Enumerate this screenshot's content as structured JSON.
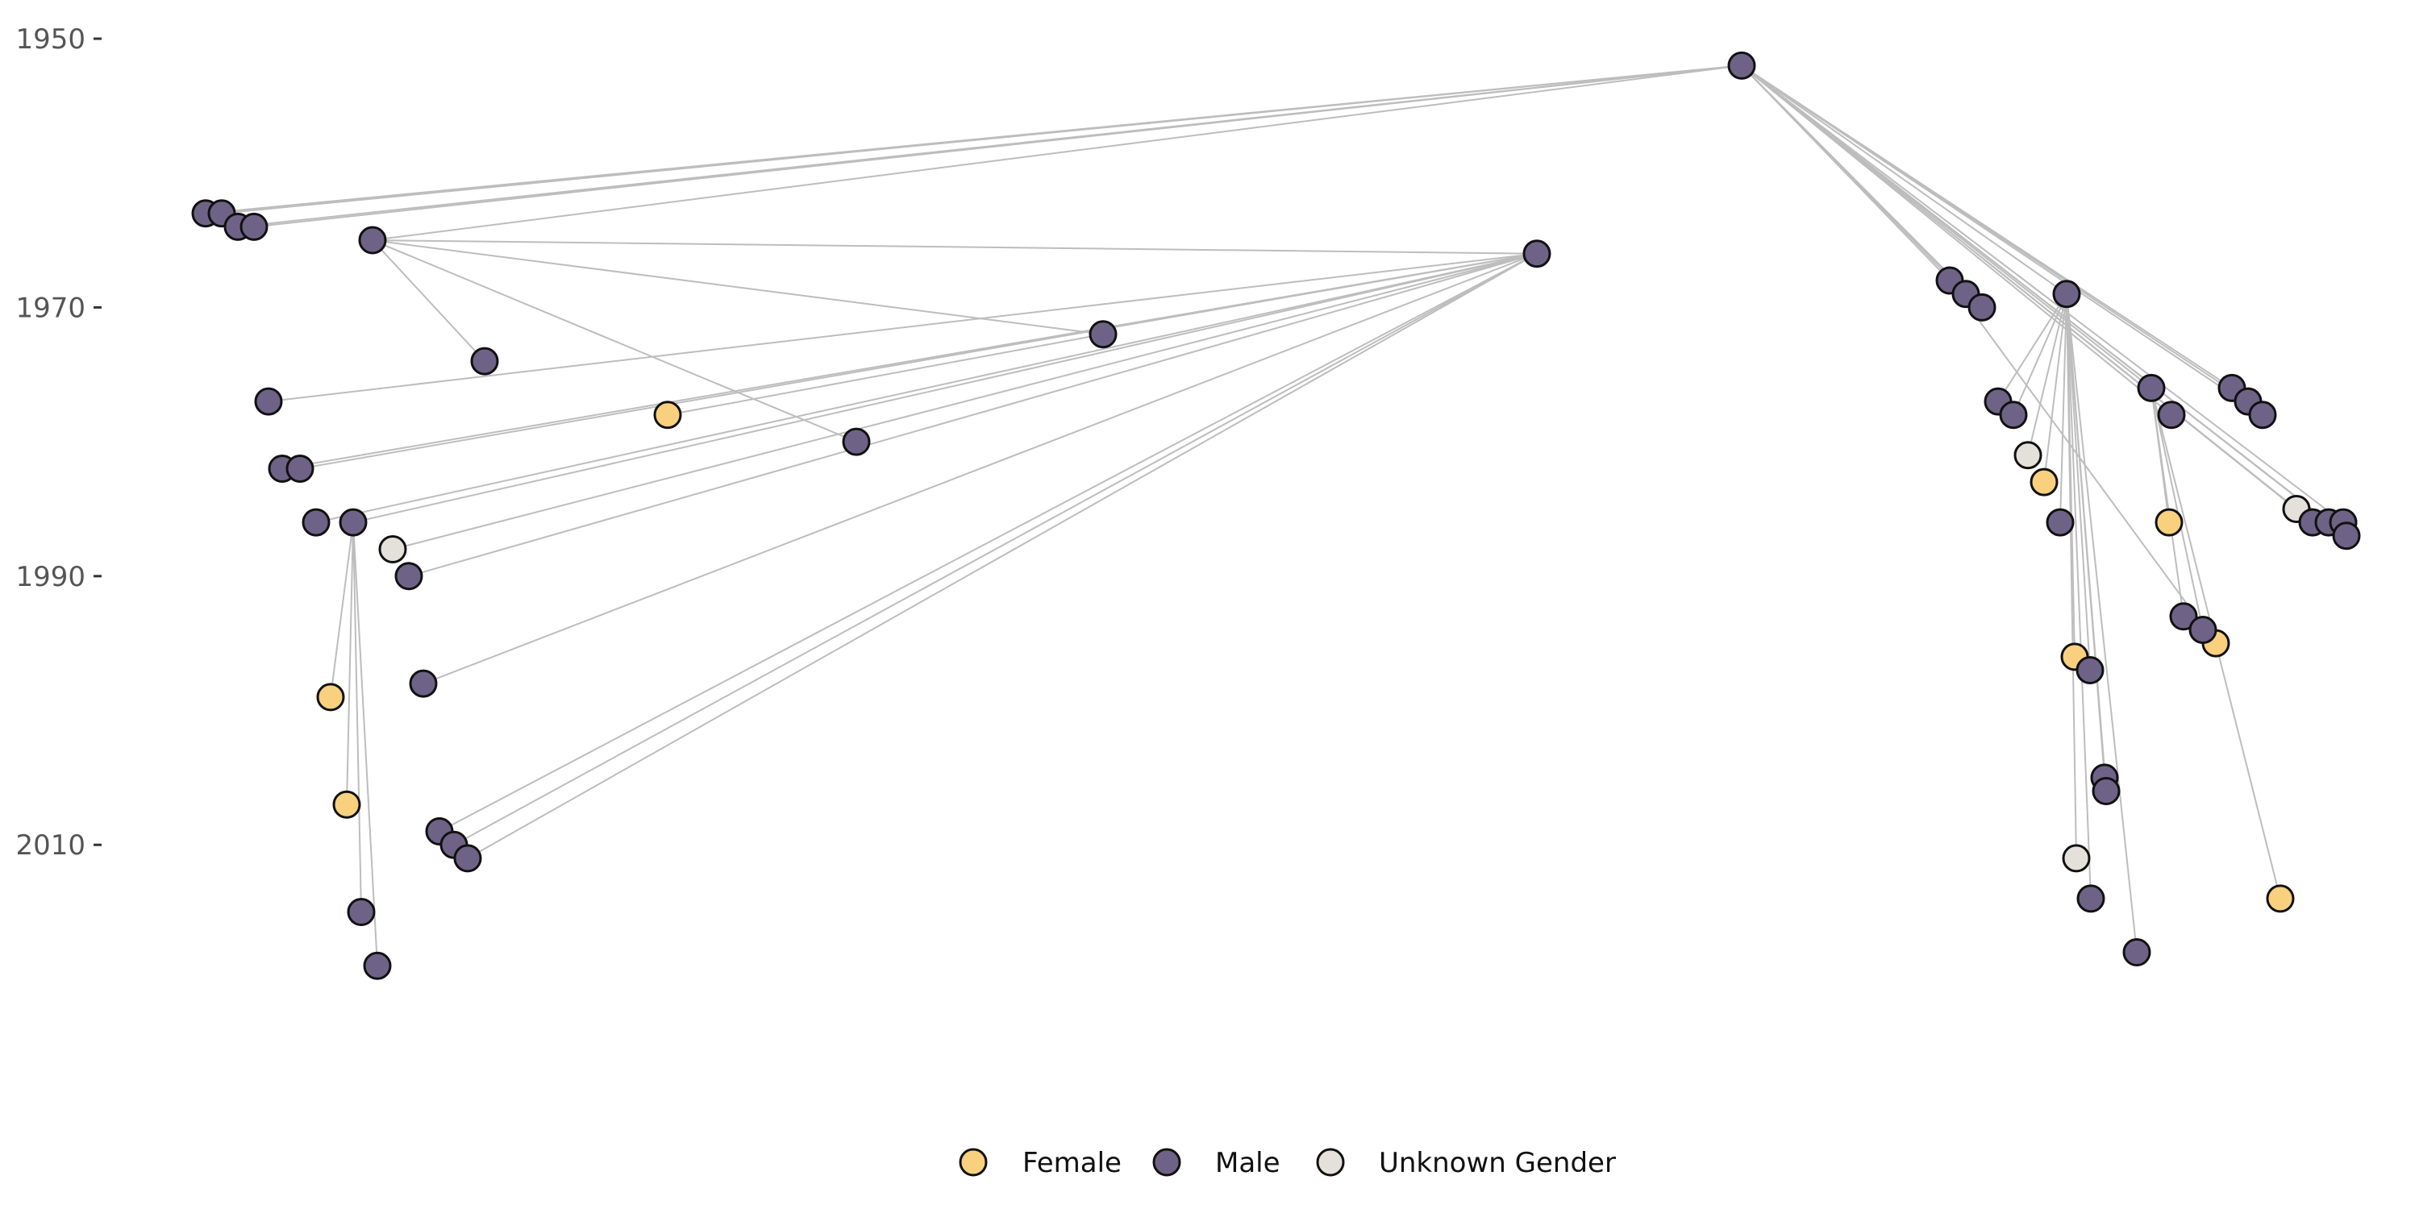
{
  "chart_data": {
    "type": "tree",
    "title": "",
    "xlabel": "",
    "ylabel": "",
    "ylim": [
      1950,
      2022
    ],
    "y_ticks": [
      1950,
      1970,
      1990,
      2010
    ],
    "colors": {
      "Female": "#f8d07e",
      "Male": "#6e6387",
      "Unknown Gender": "#e4e1da"
    },
    "legend": {
      "position": "bottom",
      "entries": [
        "Female",
        "Male",
        "Unknown Gender"
      ]
    },
    "nodes": [
      {
        "id": 0,
        "year": 1952,
        "gender": "Male",
        "parent": null
      },
      {
        "id": 1,
        "year": 1963,
        "gender": "Male",
        "parent": 0
      },
      {
        "id": 2,
        "year": 1963,
        "gender": "Male",
        "parent": 0
      },
      {
        "id": 3,
        "year": 1964,
        "gender": "Male",
        "parent": 0
      },
      {
        "id": 4,
        "year": 1964,
        "gender": "Male",
        "parent": 0
      },
      {
        "id": 5,
        "year": 1965,
        "gender": "Male",
        "parent": 0
      },
      {
        "id": 6,
        "year": 1966,
        "gender": "Male",
        "parent": 5
      },
      {
        "id": 7,
        "year": 1977,
        "gender": "Male",
        "parent": 6
      },
      {
        "id": 8,
        "year": 1982,
        "gender": "Male",
        "parent": 6
      },
      {
        "id": 9,
        "year": 1982,
        "gender": "Male",
        "parent": 6
      },
      {
        "id": 10,
        "year": 1986,
        "gender": "Male",
        "parent": 6
      },
      {
        "id": 11,
        "year": 1986,
        "gender": "Male",
        "parent": 6
      },
      {
        "id": 12,
        "year": 1988,
        "gender": "Unknown Gender",
        "parent": 6
      },
      {
        "id": 13,
        "year": 1990,
        "gender": "Male",
        "parent": 6
      },
      {
        "id": 14,
        "year": 1998,
        "gender": "Male",
        "parent": 6
      },
      {
        "id": 15,
        "year": 2009,
        "gender": "Male",
        "parent": 6
      },
      {
        "id": 16,
        "year": 2010,
        "gender": "Male",
        "parent": 6
      },
      {
        "id": 17,
        "year": 2011,
        "gender": "Male",
        "parent": 6
      },
      {
        "id": 18,
        "year": 1999,
        "gender": "Female",
        "parent": 11
      },
      {
        "id": 19,
        "year": 2007,
        "gender": "Female",
        "parent": 11
      },
      {
        "id": 20,
        "year": 2015,
        "gender": "Male",
        "parent": 11
      },
      {
        "id": 21,
        "year": 2019,
        "gender": "Male",
        "parent": 11
      },
      {
        "id": 22,
        "year": 1974,
        "gender": "Male",
        "parent": 5
      },
      {
        "id": 23,
        "year": 1978,
        "gender": "Female",
        "parent": 24
      },
      {
        "id": 24,
        "year": 1972,
        "gender": "Male",
        "parent": 5
      },
      {
        "id": 25,
        "year": 1980,
        "gender": "Male",
        "parent": 5
      },
      {
        "id": 26,
        "year": 1968,
        "gender": "Male",
        "parent": 0
      },
      {
        "id": 27,
        "year": 1969,
        "gender": "Male",
        "parent": 0
      },
      {
        "id": 28,
        "year": 1970,
        "gender": "Male",
        "parent": 0
      },
      {
        "id": 29,
        "year": 1969,
        "gender": "Male",
        "parent": 0
      },
      {
        "id": 30,
        "year": 1977,
        "gender": "Male",
        "parent": 29
      },
      {
        "id": 31,
        "year": 1978,
        "gender": "Male",
        "parent": 29
      },
      {
        "id": 32,
        "year": 1981,
        "gender": "Unknown Gender",
        "parent": 29
      },
      {
        "id": 33,
        "year": 1983,
        "gender": "Female",
        "parent": 29
      },
      {
        "id": 34,
        "year": 1986,
        "gender": "Male",
        "parent": 29
      },
      {
        "id": 35,
        "year": 1996,
        "gender": "Female",
        "parent": 29
      },
      {
        "id": 36,
        "year": 1997,
        "gender": "Male",
        "parent": 29
      },
      {
        "id": 37,
        "year": 2005,
        "gender": "Male",
        "parent": 29
      },
      {
        "id": 38,
        "year": 2006,
        "gender": "Male",
        "parent": 29
      },
      {
        "id": 39,
        "year": 2018,
        "gender": "Male",
        "parent": 29
      },
      {
        "id": 40,
        "year": 2011,
        "gender": "Unknown Gender",
        "parent": 29
      },
      {
        "id": 41,
        "year": 2014,
        "gender": "Male",
        "parent": 29
      },
      {
        "id": 42,
        "year": 1995,
        "gender": "Female",
        "parent": 26
      },
      {
        "id": 43,
        "year": 1976,
        "gender": "Male",
        "parent": 0
      },
      {
        "id": 44,
        "year": 1977,
        "gender": "Male",
        "parent": 0
      },
      {
        "id": 45,
        "year": 1978,
        "gender": "Male",
        "parent": 0
      },
      {
        "id": 46,
        "year": 1978,
        "gender": "Male",
        "parent": 0
      },
      {
        "id": 47,
        "year": 1976,
        "gender": "Male",
        "parent": 0
      },
      {
        "id": 48,
        "year": 1986,
        "gender": "Female",
        "parent": 47
      },
      {
        "id": 49,
        "year": 1993,
        "gender": "Male",
        "parent": 47
      },
      {
        "id": 50,
        "year": 1994,
        "gender": "Male",
        "parent": 47
      },
      {
        "id": 51,
        "year": 2014,
        "gender": "Female",
        "parent": 47
      },
      {
        "id": 52,
        "year": 1985,
        "gender": "Unknown Gender",
        "parent": 0
      },
      {
        "id": 53,
        "year": 1986,
        "gender": "Male",
        "parent": 0
      },
      {
        "id": 54,
        "year": 1986,
        "gender": "Male",
        "parent": 0
      },
      {
        "id": 55,
        "year": 1986,
        "gender": "Male",
        "parent": 0
      },
      {
        "id": 56,
        "year": 1987,
        "gender": "Male",
        "parent": 0
      }
    ]
  }
}
